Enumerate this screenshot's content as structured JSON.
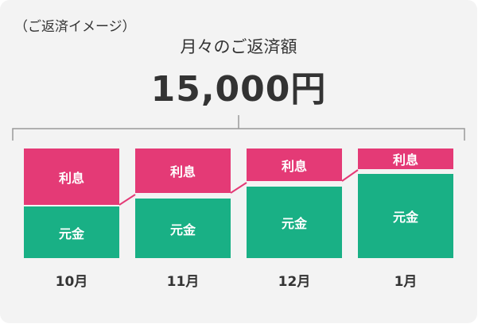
{
  "caption": "（ご返済イメージ）",
  "subtitle": "月々のご返済額",
  "amount": "15,000円",
  "interest_label": "利息",
  "principal_label": "元金",
  "months": [
    "10月",
    "11月",
    "12月",
    "1月"
  ],
  "colors": {
    "interest": "#e43a76",
    "principal": "#19b085",
    "connector": "#e43a76"
  }
}
